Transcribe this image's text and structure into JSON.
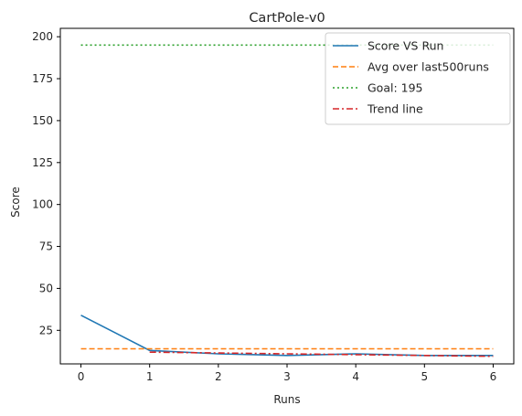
{
  "chart_data": {
    "type": "line",
    "title": "CartPole-v0",
    "xlabel": "Runs",
    "ylabel": "Score",
    "xlim": [
      -0.3,
      6.3
    ],
    "ylim": [
      5,
      205
    ],
    "xticks": [
      0,
      1,
      2,
      3,
      4,
      5,
      6
    ],
    "yticks": [
      25,
      50,
      75,
      100,
      125,
      150,
      175,
      200
    ],
    "grid": false,
    "legend_position": "top-right",
    "series": [
      {
        "name": "Score VS Run",
        "style": "solid",
        "color": "#1f77b4",
        "x": [
          0,
          1,
          2,
          3,
          4,
          5,
          6
        ],
        "y": [
          34,
          13,
          11,
          10,
          11,
          10,
          10
        ]
      },
      {
        "name": "Avg over last500runs",
        "style": "dashed",
        "color": "#ff7f0e",
        "x": [
          0,
          6
        ],
        "y": [
          14,
          14
        ]
      },
      {
        "name": "Goal: 195",
        "style": "dotted",
        "color": "#2ca02c",
        "x": [
          0,
          6
        ],
        "y": [
          195,
          195
        ]
      },
      {
        "name": "Trend line",
        "style": "dashdot",
        "color": "#d62728",
        "x": [
          1,
          2,
          3,
          4,
          5,
          6
        ],
        "y": [
          12,
          11.5,
          11,
          10.5,
          10,
          9.5
        ]
      }
    ]
  }
}
